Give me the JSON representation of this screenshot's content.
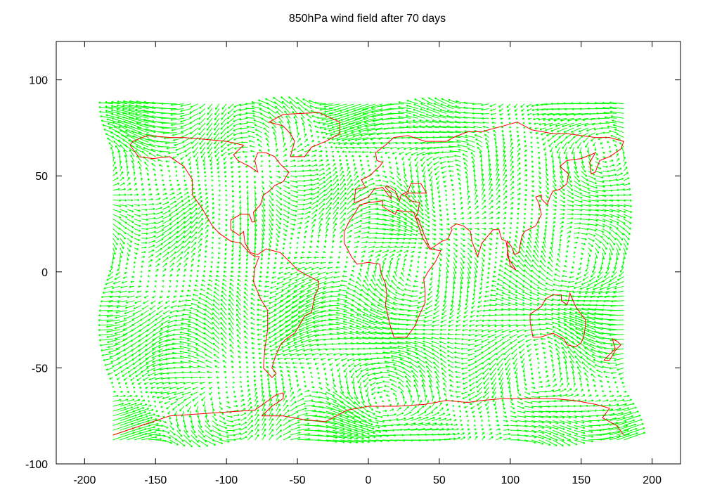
{
  "chart_data": {
    "type": "vector-field",
    "title": "850hPa wind field after 70 days",
    "xlabel": "",
    "ylabel": "",
    "xlim": [
      -220,
      220
    ],
    "ylim": [
      -100,
      120
    ],
    "xticks": [
      -200,
      -150,
      -100,
      -50,
      0,
      50,
      100,
      150,
      200
    ],
    "yticks": [
      -100,
      -50,
      0,
      50,
      100
    ],
    "grid": false,
    "legend": "none",
    "vector_color": "#00ff00",
    "coastline_color": "#ff0000",
    "vector_field": {
      "lon_range": [
        -180,
        180
      ],
      "lat_range": [
        -87.5,
        87.5
      ],
      "lon_spacing": 5,
      "lat_spacing": 2.5
    },
    "coastlines": [
      [
        [
          -168,
          66
        ],
        [
          -162,
          60
        ],
        [
          -152,
          59
        ],
        [
          -140,
          60
        ],
        [
          -130,
          55
        ],
        [
          -124,
          48
        ],
        [
          -124,
          40
        ],
        [
          -118,
          34
        ],
        [
          -110,
          24
        ],
        [
          -105,
          20
        ],
        [
          -97,
          16
        ],
        [
          -90,
          15
        ],
        [
          -84,
          10
        ],
        [
          -80,
          8
        ],
        [
          -77,
          8
        ],
        [
          -80,
          2
        ],
        [
          -81,
          -5
        ],
        [
          -76,
          -14
        ],
        [
          -71,
          -20
        ],
        [
          -71,
          -30
        ],
        [
          -73,
          -40
        ],
        [
          -74,
          -50
        ],
        [
          -68,
          -55
        ],
        [
          -65,
          -53
        ],
        [
          -68,
          -50
        ],
        [
          -66,
          -45
        ],
        [
          -62,
          -38
        ],
        [
          -58,
          -35
        ],
        [
          -52,
          -32
        ],
        [
          -48,
          -27
        ],
        [
          -45,
          -23
        ],
        [
          -40,
          -21
        ],
        [
          -38,
          -13
        ],
        [
          -35,
          -8
        ],
        [
          -35,
          -5
        ],
        [
          -45,
          -1
        ],
        [
          -50,
          1
        ],
        [
          -55,
          5
        ],
        [
          -62,
          10
        ],
        [
          -72,
          12
        ],
        [
          -78,
          9
        ],
        [
          -83,
          10
        ],
        [
          -87,
          15
        ],
        [
          -88,
          21
        ],
        [
          -91,
          19
        ],
        [
          -97,
          22
        ],
        [
          -97,
          27
        ],
        [
          -90,
          30
        ],
        [
          -84,
          30
        ],
        [
          -82,
          26
        ],
        [
          -80,
          26
        ],
        [
          -81,
          31
        ],
        [
          -76,
          35
        ],
        [
          -74,
          40
        ],
        [
          -70,
          42
        ],
        [
          -66,
          45
        ],
        [
          -60,
          47
        ],
        [
          -56,
          52
        ],
        [
          -62,
          56
        ],
        [
          -66,
          60
        ],
        [
          -72,
          62
        ],
        [
          -78,
          62
        ],
        [
          -80,
          58
        ],
        [
          -78,
          52
        ],
        [
          -84,
          55
        ],
        [
          -92,
          58
        ],
        [
          -95,
          61
        ],
        [
          -88,
          66
        ],
        [
          -100,
          68
        ],
        [
          -115,
          69
        ],
        [
          -130,
          70
        ],
        [
          -140,
          70
        ],
        [
          -156,
          71
        ],
        [
          -166,
          68
        ],
        [
          -168,
          66
        ]
      ],
      [
        [
          -55,
          60
        ],
        [
          -45,
          60
        ],
        [
          -40,
          65
        ],
        [
          -30,
          68
        ],
        [
          -20,
          72
        ],
        [
          -20,
          78
        ],
        [
          -35,
          83
        ],
        [
          -60,
          82
        ],
        [
          -70,
          78
        ],
        [
          -60,
          76
        ],
        [
          -55,
          72
        ],
        [
          -52,
          68
        ],
        [
          -55,
          60
        ]
      ],
      [
        [
          -10,
          36
        ],
        [
          -9,
          43
        ],
        [
          -2,
          44
        ],
        [
          -5,
          48
        ],
        [
          1,
          50
        ],
        [
          5,
          53
        ],
        [
          8,
          55
        ],
        [
          10,
          57
        ],
        [
          6,
          58
        ],
        [
          5,
          62
        ],
        [
          12,
          66
        ],
        [
          18,
          70
        ],
        [
          28,
          71
        ],
        [
          40,
          68
        ],
        [
          45,
          68
        ],
        [
          55,
          68
        ],
        [
          60,
          70
        ],
        [
          70,
          73
        ],
        [
          80,
          73
        ],
        [
          95,
          76
        ],
        [
          105,
          78
        ],
        [
          115,
          74
        ],
        [
          130,
          72
        ],
        [
          140,
          72
        ],
        [
          150,
          71
        ],
        [
          160,
          70
        ],
        [
          170,
          70
        ],
        [
          180,
          68
        ],
        [
          178,
          64
        ],
        [
          170,
          60
        ],
        [
          163,
          58
        ],
        [
          160,
          52
        ],
        [
          157,
          51
        ],
        [
          156,
          57
        ],
        [
          160,
          62
        ],
        [
          150,
          59
        ],
        [
          140,
          58
        ],
        [
          135,
          55
        ],
        [
          141,
          51
        ],
        [
          140,
          46
        ],
        [
          135,
          43
        ],
        [
          130,
          42
        ],
        [
          128,
          39
        ],
        [
          126,
          35
        ],
        [
          122,
          38
        ],
        [
          122,
          40
        ],
        [
          118,
          39
        ],
        [
          120,
          36
        ],
        [
          122,
          30
        ],
        [
          118,
          24
        ],
        [
          110,
          21
        ],
        [
          108,
          18
        ],
        [
          106,
          10
        ],
        [
          103,
          9
        ],
        [
          101,
          13
        ],
        [
          98,
          16
        ],
        [
          98,
          8
        ],
        [
          104,
          1
        ],
        [
          100,
          3
        ],
        [
          97,
          16
        ],
        [
          94,
          17
        ],
        [
          92,
          22
        ],
        [
          88,
          22
        ],
        [
          80,
          15
        ],
        [
          77,
          8
        ],
        [
          73,
          16
        ],
        [
          72,
          21
        ],
        [
          67,
          24
        ],
        [
          62,
          25
        ],
        [
          58,
          23
        ],
        [
          59,
          22
        ],
        [
          56,
          17
        ],
        [
          52,
          16
        ],
        [
          44,
          12
        ],
        [
          43,
          13
        ],
        [
          39,
          20
        ],
        [
          35,
          28
        ],
        [
          33,
          28
        ],
        [
          35,
          31
        ],
        [
          36,
          36
        ],
        [
          30,
          37
        ],
        [
          26,
          40
        ],
        [
          28,
          41
        ],
        [
          41,
          41
        ],
        [
          37,
          46
        ],
        [
          30,
          46
        ],
        [
          28,
          42
        ],
        [
          23,
          40
        ],
        [
          22,
          37
        ],
        [
          20,
          40
        ],
        [
          19,
          42
        ],
        [
          13,
          45
        ],
        [
          12,
          44
        ],
        [
          16,
          41
        ],
        [
          16,
          38
        ],
        [
          10,
          44
        ],
        [
          4,
          43
        ],
        [
          0,
          39
        ],
        [
          -6,
          37
        ],
        [
          -10,
          36
        ]
      ],
      [
        [
          -17,
          21
        ],
        [
          -17,
          15
        ],
        [
          -12,
          8
        ],
        [
          -8,
          4
        ],
        [
          0,
          5
        ],
        [
          8,
          4
        ],
        [
          9,
          -1
        ],
        [
          12,
          -6
        ],
        [
          13,
          -12
        ],
        [
          12,
          -17
        ],
        [
          15,
          -27
        ],
        [
          18,
          -34
        ],
        [
          22,
          -34
        ],
        [
          27,
          -34
        ],
        [
          33,
          -28
        ],
        [
          35,
          -24
        ],
        [
          40,
          -16
        ],
        [
          40,
          -10
        ],
        [
          39,
          -4
        ],
        [
          42,
          0
        ],
        [
          47,
          5
        ],
        [
          51,
          11
        ],
        [
          43,
          12
        ],
        [
          38,
          18
        ],
        [
          34,
          27
        ],
        [
          32,
          31
        ],
        [
          20,
          32
        ],
        [
          19,
          30
        ],
        [
          10,
          34
        ],
        [
          10,
          37
        ],
        [
          0,
          36
        ],
        [
          -6,
          35
        ],
        [
          -10,
          30
        ],
        [
          -13,
          27
        ],
        [
          -17,
          21
        ]
      ],
      [
        [
          114,
          -22
        ],
        [
          114,
          -26
        ],
        [
          116,
          -34
        ],
        [
          121,
          -34
        ],
        [
          130,
          -32
        ],
        [
          138,
          -35
        ],
        [
          140,
          -38
        ],
        [
          146,
          -39
        ],
        [
          150,
          -37
        ],
        [
          152,
          -33
        ],
        [
          153,
          -28
        ],
        [
          153,
          -25
        ],
        [
          148,
          -20
        ],
        [
          146,
          -18
        ],
        [
          142,
          -11
        ],
        [
          141,
          -15
        ],
        [
          140,
          -17
        ],
        [
          136,
          -15
        ],
        [
          136,
          -12
        ],
        [
          130,
          -12
        ],
        [
          125,
          -14
        ],
        [
          122,
          -18
        ],
        [
          114,
          -22
        ]
      ],
      [
        [
          166,
          -46
        ],
        [
          170,
          -46
        ],
        [
          174,
          -41
        ],
        [
          178,
          -38
        ],
        [
          175,
          -36
        ],
        [
          172,
          -35
        ],
        [
          174,
          -40
        ],
        [
          170,
          -43
        ],
        [
          166,
          -46
        ]
      ],
      [
        [
          -180,
          -85
        ],
        [
          -160,
          -80
        ],
        [
          -140,
          -75
        ],
        [
          -120,
          -74
        ],
        [
          -100,
          -73
        ],
        [
          -80,
          -72
        ],
        [
          -65,
          -64
        ],
        [
          -60,
          -63
        ],
        [
          -60,
          -66
        ],
        [
          -68,
          -70
        ],
        [
          -75,
          -75
        ],
        [
          -60,
          -75
        ],
        [
          -45,
          -77
        ],
        [
          -30,
          -78
        ],
        [
          -15,
          -72
        ],
        [
          0,
          -70
        ],
        [
          20,
          -70
        ],
        [
          40,
          -69
        ],
        [
          55,
          -67
        ],
        [
          70,
          -68
        ],
        [
          80,
          -67
        ],
        [
          95,
          -66
        ],
        [
          110,
          -66
        ],
        [
          130,
          -66
        ],
        [
          145,
          -67
        ],
        [
          160,
          -69
        ],
        [
          170,
          -71
        ],
        [
          165,
          -76
        ],
        [
          170,
          -78
        ],
        [
          175,
          -80
        ],
        [
          180,
          -85
        ]
      ]
    ]
  }
}
